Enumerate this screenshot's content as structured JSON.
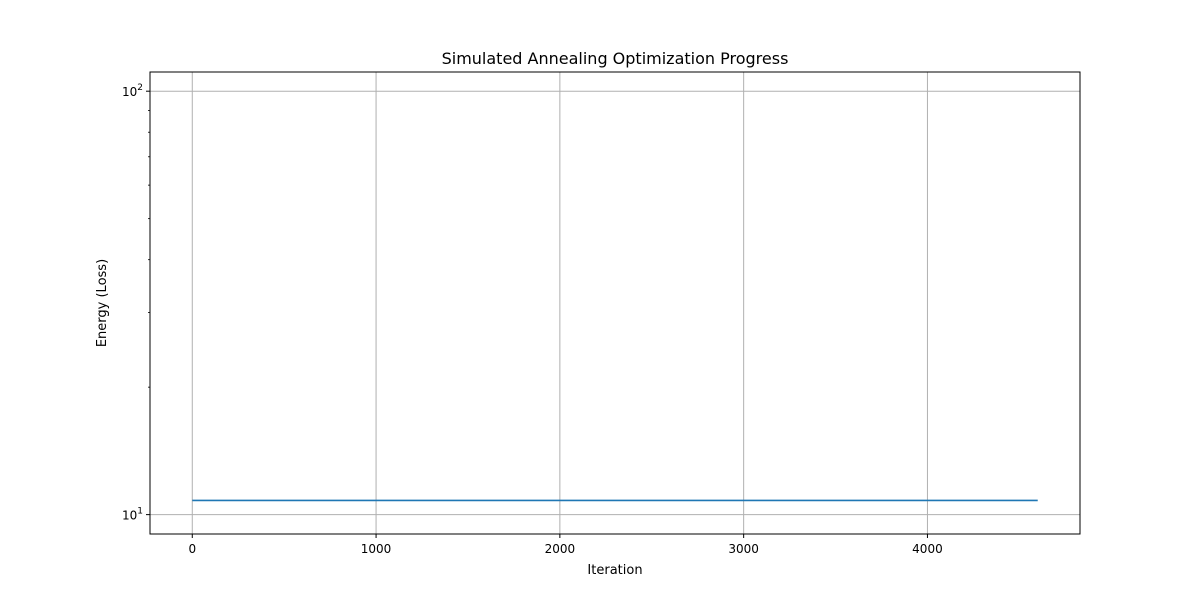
{
  "chart_data": {
    "type": "line",
    "title": "Simulated Annealing Optimization Progress",
    "xlabel": "Iteration",
    "ylabel": "Energy (Loss)",
    "xlim": [
      -230,
      4830
    ],
    "ylim": [
      9.0,
      111.0
    ],
    "y_scale": "log",
    "x_ticks": [
      0,
      1000,
      2000,
      3000,
      4000
    ],
    "x_tick_labels": [
      "0",
      "1000",
      "2000",
      "3000",
      "4000"
    ],
    "y_ticks": [
      {
        "value": 10,
        "base": "10",
        "exponent": "1"
      },
      {
        "value": 100,
        "base": "10",
        "exponent": "2"
      }
    ],
    "y_minor_ticks": [
      20,
      30,
      40,
      50,
      60,
      70,
      80,
      90
    ],
    "grid": true,
    "legend": "none",
    "series": [
      {
        "color": "#1f77b4",
        "x": [
          0,
          4600
        ],
        "y": [
          10.8,
          10.8
        ]
      }
    ]
  }
}
